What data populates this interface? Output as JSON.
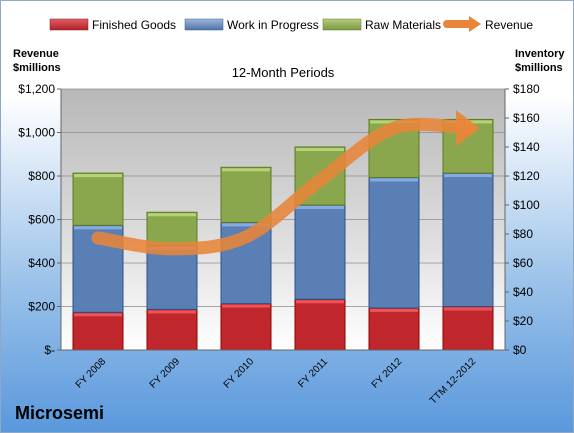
{
  "company": "Microsemi",
  "chart_data": {
    "type": "bar",
    "stacked": true,
    "subtitle": "12-Month Periods",
    "categories": [
      "FY 2008",
      "FY 2009",
      "FY 2010",
      "FY 2011",
      "FY 2012",
      "TTM 12-2012"
    ],
    "left_axis": {
      "label_line1": "Revenue",
      "label_line2": "$millions",
      "ylim": [
        0,
        1200
      ],
      "ticks": [
        0,
        200,
        400,
        600,
        800,
        1000,
        1200
      ],
      "tick_labels": [
        "$-",
        "$200",
        "$400",
        "$600",
        "$800",
        "$1,000",
        "$1,200"
      ]
    },
    "right_axis": {
      "label_line1": "Inventory",
      "label_line2": "$millions",
      "ylim": [
        0,
        180
      ],
      "ticks": [
        0,
        20,
        40,
        60,
        80,
        100,
        120,
        140,
        160,
        180
      ],
      "tick_labels": [
        "$0",
        "$20",
        "$40",
        "$60",
        "$80",
        "$100",
        "$120",
        "$140",
        "$160",
        "$180"
      ]
    },
    "series": [
      {
        "name": "Finished Goods",
        "axis": "right",
        "color": "#c0272d",
        "values": [
          26,
          28,
          32,
          35,
          29,
          30
        ]
      },
      {
        "name": "Work in Progress",
        "axis": "right",
        "color": "#5a7fb5",
        "values": [
          60,
          44,
          56,
          65,
          90,
          92
        ]
      },
      {
        "name": "Raw Materials",
        "axis": "right",
        "color": "#8aa74e",
        "values": [
          36,
          23,
          38,
          40,
          40,
          37
        ]
      },
      {
        "name": "Revenue",
        "axis": "left",
        "kind": "line",
        "color": "#e8853a",
        "values": [
          515,
          465,
          520,
          780,
          1020,
          1020
        ]
      }
    ],
    "grid": true,
    "legend": "top"
  }
}
